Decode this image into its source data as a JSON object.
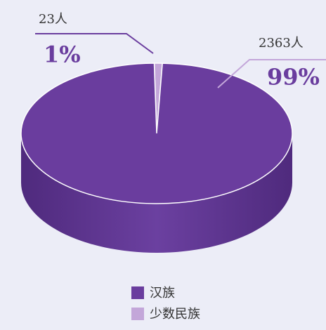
{
  "chart_data": {
    "type": "pie",
    "categories": [
      "汉族",
      "少数民族"
    ],
    "values": [
      2363,
      23
    ],
    "value_labels": [
      "2363人",
      "23人"
    ],
    "percents": [
      99,
      1
    ],
    "percent_labels": [
      "99%",
      "1%"
    ],
    "colors": [
      "#6a3d9e",
      "#c3a6d9"
    ],
    "legend": "bottom"
  }
}
